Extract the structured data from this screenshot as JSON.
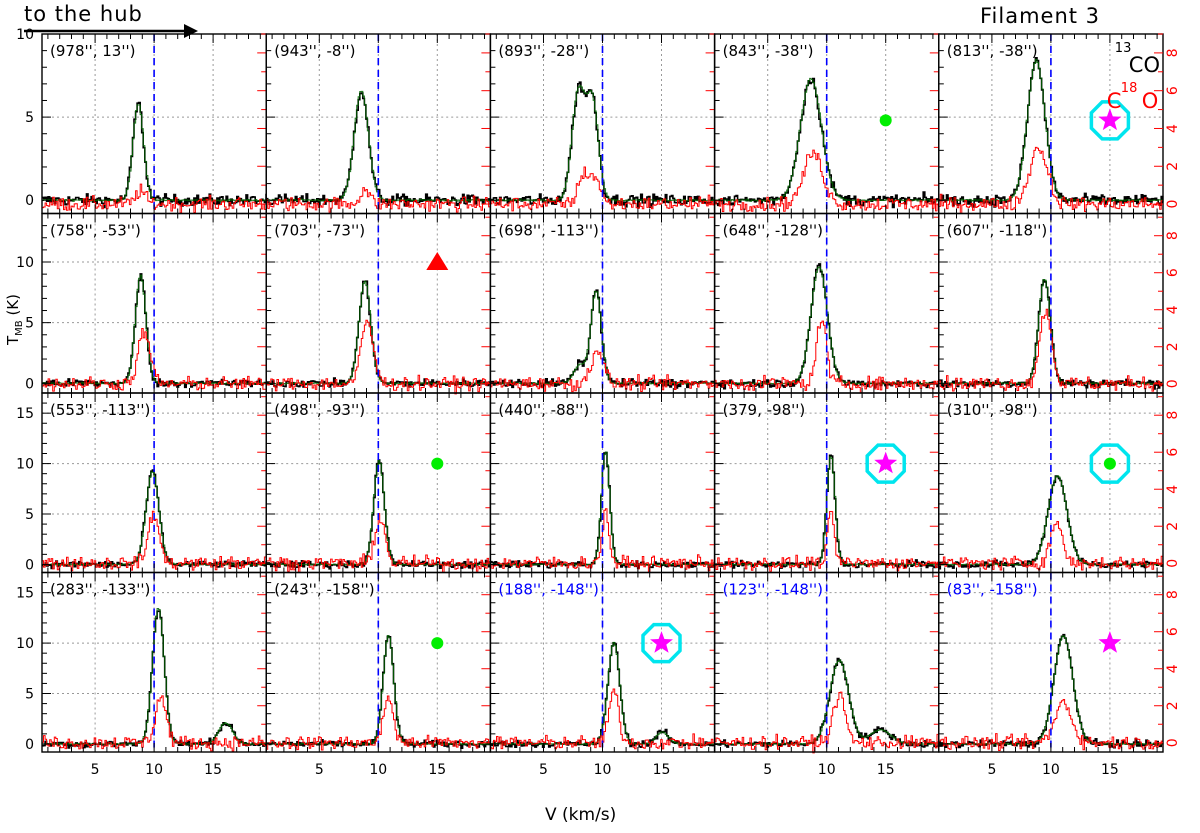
{
  "header": {
    "hub_label": "to the hub",
    "title": "Filament 3"
  },
  "legend": {
    "co13_sup": "13",
    "co13_txt": "CO",
    "c18o_c": "C",
    "c18o_sup": "18",
    "c18o_o": "O"
  },
  "colors": {
    "co13": "#000000",
    "c18o": "#ff0000",
    "vline": "#0000ff",
    "star": "#ff00ff",
    "ring": "#00e5ee",
    "dot": "#00ee00",
    "triangle": "#ff0000",
    "label_blue": "#0000ff"
  },
  "chart_data": {
    "type": "line",
    "title": "Filament 3",
    "xlabel": "V (km/s)",
    "ylabel": "T_MB (K)",
    "xlim": [
      0.5,
      19.5
    ],
    "x_ticks": [
      5,
      10,
      15
    ],
    "reference_velocity": 10,
    "grid": true,
    "legend": [
      "13CO",
      "C18O"
    ],
    "rows": [
      {
        "ylim_left": [
          -0.8,
          10
        ],
        "left_ticks": [
          0,
          5,
          10
        ],
        "right_ticks": [
          0,
          2,
          4,
          6,
          8
        ],
        "ylim_right": [
          -0.5,
          9
        ]
      },
      {
        "ylim_left": [
          -0.8,
          14
        ],
        "left_ticks": [
          0,
          5,
          10
        ],
        "right_ticks": [
          0,
          2,
          4,
          6,
          8
        ],
        "ylim_right": [
          -0.5,
          9.2
        ]
      },
      {
        "ylim_left": [
          -0.8,
          17
        ],
        "left_ticks": [
          0,
          5,
          10,
          15
        ],
        "right_ticks": [
          0,
          2,
          4,
          6,
          8
        ],
        "ylim_right": [
          -0.5,
          9.2
        ]
      },
      {
        "ylim_left": [
          -0.8,
          17
        ],
        "left_ticks": [
          0,
          5,
          10,
          15
        ],
        "right_ticks": [
          0,
          2,
          4,
          6,
          8
        ],
        "ylim_right": [
          -0.5,
          9.2
        ]
      }
    ],
    "panels": [
      {
        "label": "(978'', 13'')",
        "blue": false,
        "marker": "none",
        "co13": [
          {
            "v": 8.6,
            "amp": 5.8,
            "w": 0.45
          }
        ],
        "c18o": [
          {
            "v": 8.8,
            "amp": 0.7,
            "w": 0.4
          }
        ]
      },
      {
        "label": "(943'', -8'')",
        "blue": false,
        "marker": "none",
        "co13": [
          {
            "v": 8.5,
            "amp": 6.6,
            "w": 0.6
          }
        ],
        "c18o": [
          {
            "v": 8.8,
            "amp": 0.8,
            "w": 0.4
          }
        ]
      },
      {
        "label": "(893'', -28'')",
        "blue": false,
        "marker": "none",
        "co13": [
          {
            "v": 7.9,
            "amp": 6.5,
            "w": 0.55
          },
          {
            "v": 9.1,
            "amp": 5.8,
            "w": 0.5
          }
        ],
        "c18o": [
          {
            "v": 8.4,
            "amp": 1.6,
            "w": 0.5
          },
          {
            "v": 9.4,
            "amp": 1.2,
            "w": 0.4
          }
        ]
      },
      {
        "label": "(843'', -38'')",
        "blue": false,
        "marker": "dot",
        "co13": [
          {
            "v": 8.6,
            "amp": 7.3,
            "w": 0.9
          }
        ],
        "c18o": [
          {
            "v": 8.8,
            "amp": 2.7,
            "w": 0.8
          }
        ]
      },
      {
        "label": "(813'', -38'')",
        "blue": false,
        "marker": "star_ring",
        "co13": [
          {
            "v": 8.7,
            "amp": 8.4,
            "w": 0.75
          }
        ],
        "c18o": [
          {
            "v": 8.9,
            "amp": 3.0,
            "w": 0.75
          }
        ]
      },
      {
        "label": "(758'', -53'')",
        "blue": false,
        "marker": "none",
        "co13": [
          {
            "v": 8.8,
            "amp": 8.9,
            "w": 0.45
          }
        ],
        "c18o": [
          {
            "v": 9.1,
            "amp": 2.8,
            "w": 0.5
          }
        ]
      },
      {
        "label": "(703'', -73'')",
        "blue": false,
        "marker": "triangle",
        "co13": [
          {
            "v": 8.8,
            "amp": 8.4,
            "w": 0.5
          }
        ],
        "c18o": [
          {
            "v": 9.0,
            "amp": 3.4,
            "w": 0.5
          }
        ]
      },
      {
        "label": "(698'', -113'')",
        "blue": false,
        "marker": "none",
        "co13": [
          {
            "v": 9.4,
            "amp": 7.6,
            "w": 0.45
          },
          {
            "v": 8.0,
            "amp": 1.5,
            "w": 0.5
          }
        ],
        "c18o": [
          {
            "v": 9.5,
            "amp": 1.9,
            "w": 0.5
          }
        ]
      },
      {
        "label": "(648'', -128'')",
        "blue": false,
        "marker": "none",
        "co13": [
          {
            "v": 9.3,
            "amp": 9.6,
            "w": 0.7
          }
        ],
        "c18o": [
          {
            "v": 9.5,
            "amp": 3.6,
            "w": 0.4
          }
        ]
      },
      {
        "label": "(607'', -118'')",
        "blue": false,
        "marker": "none",
        "co13": [
          {
            "v": 9.4,
            "amp": 8.6,
            "w": 0.5
          }
        ],
        "c18o": [
          {
            "v": 9.5,
            "amp": 4.0,
            "w": 0.5
          }
        ]
      },
      {
        "label": "(553'', -113'')",
        "blue": false,
        "marker": "none",
        "co13": [
          {
            "v": 9.8,
            "amp": 9.2,
            "w": 0.55
          }
        ],
        "c18o": [
          {
            "v": 9.9,
            "amp": 2.7,
            "w": 0.45
          }
        ]
      },
      {
        "label": "(498'', -93'')",
        "blue": false,
        "marker": "dot",
        "co13": [
          {
            "v": 10.0,
            "amp": 10.3,
            "w": 0.45
          }
        ],
        "c18o": [
          {
            "v": 10.1,
            "amp": 2.6,
            "w": 0.4
          }
        ]
      },
      {
        "label": "(440'', -88'')",
        "blue": false,
        "marker": "none",
        "co13": [
          {
            "v": 10.2,
            "amp": 11.2,
            "w": 0.35
          }
        ],
        "c18o": [
          {
            "v": 10.2,
            "amp": 2.7,
            "w": 0.3
          }
        ]
      },
      {
        "label": "(379, -98'')",
        "blue": false,
        "marker": "star_ring",
        "co13": [
          {
            "v": 10.3,
            "amp": 10.8,
            "w": 0.35
          }
        ],
        "c18o": [
          {
            "v": 10.3,
            "amp": 2.5,
            "w": 0.3
          }
        ]
      },
      {
        "label": "(310'', -98'')",
        "blue": false,
        "marker": "dot_ring",
        "co13": [
          {
            "v": 10.5,
            "amp": 8.8,
            "w": 0.8
          }
        ],
        "c18o": [
          {
            "v": 10.4,
            "amp": 2.2,
            "w": 0.5
          }
        ]
      },
      {
        "label": "(283'', -133'')",
        "blue": false,
        "marker": "none",
        "co13": [
          {
            "v": 10.3,
            "amp": 13.5,
            "w": 0.5
          },
          {
            "v": 16.0,
            "amp": 2.1,
            "w": 0.6
          }
        ],
        "c18o": [
          {
            "v": 10.5,
            "amp": 2.5,
            "w": 0.45
          }
        ]
      },
      {
        "label": "(243'', -158'')",
        "blue": false,
        "marker": "dot",
        "co13": [
          {
            "v": 10.8,
            "amp": 10.8,
            "w": 0.45
          }
        ],
        "c18o": [
          {
            "v": 10.8,
            "amp": 2.5,
            "w": 0.4
          }
        ]
      },
      {
        "label": "(188'', -148'')",
        "blue": true,
        "marker": "star_ring",
        "co13": [
          {
            "v": 10.9,
            "amp": 10.1,
            "w": 0.5
          },
          {
            "v": 15.0,
            "amp": 1.2,
            "w": 0.5
          }
        ],
        "c18o": [
          {
            "v": 10.9,
            "amp": 2.8,
            "w": 0.4
          }
        ]
      },
      {
        "label": "(123'', -148'')",
        "blue": true,
        "marker": "none",
        "co13": [
          {
            "v": 11.0,
            "amp": 8.3,
            "w": 0.8
          },
          {
            "v": 14.5,
            "amp": 1.4,
            "w": 0.9
          }
        ],
        "c18o": [
          {
            "v": 11.0,
            "amp": 2.6,
            "w": 0.5
          }
        ]
      },
      {
        "label": "(83'', -158'')",
        "blue": true,
        "marker": "star",
        "co13": [
          {
            "v": 11.0,
            "amp": 10.7,
            "w": 0.8
          }
        ],
        "c18o": [
          {
            "v": 11.0,
            "amp": 2.2,
            "w": 0.7
          }
        ]
      }
    ]
  }
}
